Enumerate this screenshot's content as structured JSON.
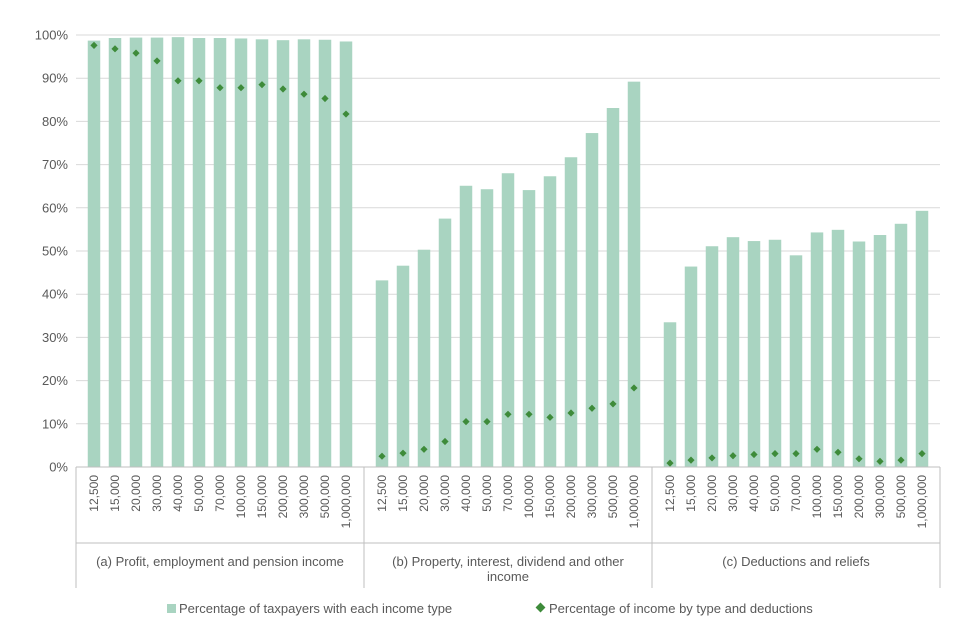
{
  "chart_data": {
    "type": "bar",
    "ylim": [
      0,
      100
    ],
    "y_ticks": [
      "0%",
      "10%",
      "20%",
      "30%",
      "40%",
      "50%",
      "60%",
      "70%",
      "80%",
      "90%",
      "100%"
    ],
    "grid": true,
    "legend_position": "bottom",
    "categories": [
      "12,500",
      "15,000",
      "20,000",
      "30,000",
      "40,000",
      "50,000",
      "70,000",
      "100,000",
      "150,000",
      "200,000",
      "300,000",
      "500,000",
      "1,000,000"
    ],
    "groups": [
      {
        "label": "(a) Profit, employment and pension income",
        "label_lines": [
          "(a) Profit, employment and pension income"
        ],
        "bars": [
          98.7,
          99.3,
          99.4,
          99.4,
          99.5,
          99.3,
          99.3,
          99.2,
          99.0,
          98.8,
          99.0,
          98.9,
          98.5
        ],
        "points": [
          97.6,
          96.8,
          95.8,
          94.0,
          89.4,
          89.4,
          87.8,
          87.8,
          88.5,
          87.5,
          86.3,
          85.3,
          81.7
        ]
      },
      {
        "label": "(b) Property, interest, dividend and other income",
        "label_lines": [
          "(b) Property, interest, dividend and other",
          "income"
        ],
        "bars": [
          43.2,
          46.6,
          50.3,
          57.5,
          65.1,
          64.3,
          68.0,
          64.1,
          67.3,
          71.7,
          77.3,
          83.1,
          89.2
        ],
        "points": [
          2.5,
          3.2,
          4.1,
          5.9,
          10.5,
          10.5,
          12.2,
          12.2,
          11.5,
          12.5,
          13.6,
          14.6,
          18.3
        ]
      },
      {
        "label": "(c) Deductions and reliefs",
        "label_lines": [
          "(c) Deductions and reliefs"
        ],
        "bars": [
          33.5,
          46.4,
          51.1,
          53.2,
          52.3,
          52.6,
          49.0,
          54.3,
          54.9,
          52.2,
          53.7,
          56.3,
          59.3
        ],
        "points": [
          0.9,
          1.6,
          2.1,
          2.6,
          2.9,
          3.1,
          3.1,
          4.1,
          3.4,
          1.9,
          1.3,
          1.6,
          3.1
        ]
      }
    ],
    "series": [
      {
        "name": "Percentage of taxpayers with each income type",
        "kind": "bar",
        "color": "#a9d4c1"
      },
      {
        "name": "Percentage of income by type and deductions",
        "kind": "marker",
        "color": "#3e8b3a"
      }
    ]
  }
}
